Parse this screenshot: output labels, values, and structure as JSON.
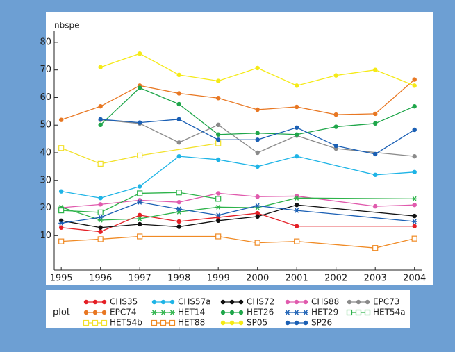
{
  "chart_data": {
    "type": "line",
    "y_label": "nbspe",
    "legend_title": "plot",
    "xlim": [
      1994.82,
      2004.2
    ],
    "xticks": [
      1995,
      1996,
      1997,
      1998,
      1999,
      2000,
      2001,
      2002,
      2003,
      2004
    ],
    "ylim": [
      -2.5,
      84
    ],
    "yticks": [
      10,
      20,
      30,
      40,
      50,
      60,
      70,
      80
    ],
    "series": [
      {
        "name": "CHS35",
        "color": "#e41f26",
        "marker": "circle",
        "x": [
          1995,
          1996,
          1997,
          1998,
          1999,
          2000,
          2001,
          2004
        ],
        "values": [
          12.9,
          11.4,
          17.4,
          15.1,
          16.6,
          18.1,
          13.4,
          13.4
        ]
      },
      {
        "name": "CHS57a",
        "color": "#1eb4e6",
        "marker": "circle",
        "x": [
          1995,
          1996,
          1997,
          1998,
          1999,
          2000,
          2001,
          2003,
          2004
        ],
        "values": [
          26,
          23.6,
          27.8,
          38.7,
          37.5,
          35,
          38.7,
          32,
          33
        ]
      },
      {
        "name": "CHS72",
        "color": "#111111",
        "marker": "circle",
        "x": [
          1995,
          1996,
          1997,
          1998,
          1999,
          2000,
          2001,
          2004
        ],
        "values": [
          15.4,
          12.9,
          14.1,
          13.2,
          15.4,
          16.9,
          21.1,
          17.1
        ]
      },
      {
        "name": "CHS88",
        "color": "#e05aad",
        "marker": "circle",
        "x": [
          1995,
          1996,
          1997,
          1998,
          1999,
          2000,
          2001,
          2003,
          2004
        ],
        "values": [
          20.1,
          21.3,
          22.8,
          22.1,
          25.3,
          24.1,
          24.3,
          20.6,
          21.1
        ]
      },
      {
        "name": "EPC73",
        "color": "#8a8a8a",
        "marker": "circle",
        "x": [
          1996,
          1997,
          1998,
          1999,
          2000,
          2001,
          2002,
          2004
        ],
        "values": [
          51.9,
          50.6,
          43.7,
          50.1,
          40,
          46.2,
          41.5,
          38.7
        ]
      },
      {
        "name": "EPC74",
        "color": "#e87722",
        "marker": "circle",
        "x": [
          1995,
          1996,
          1997,
          1998,
          1999,
          2000,
          2001,
          2002,
          2003,
          2004
        ],
        "values": [
          51.9,
          56.8,
          64.3,
          61.5,
          59.8,
          55.6,
          56.6,
          53.8,
          54.1,
          66.5
        ]
      },
      {
        "name": "HET14",
        "color": "#2db34a",
        "marker": "star",
        "x": [
          1995,
          1996,
          1997,
          1998,
          1999,
          2000,
          2001,
          2004
        ],
        "values": [
          20.3,
          15.6,
          16.1,
          18.6,
          20.3,
          20.1,
          23.6,
          23.3
        ]
      },
      {
        "name": "HET26",
        "color": "#1fa64a",
        "marker": "circle",
        "x": [
          1996,
          1997,
          1998,
          1999,
          2000,
          2001,
          2002,
          2003,
          2004
        ],
        "values": [
          50.1,
          63.5,
          57.6,
          46.6,
          47.1,
          46.6,
          49.4,
          50.6,
          56.8
        ]
      },
      {
        "name": "HET29",
        "color": "#1a5fb4",
        "marker": "star",
        "x": [
          1995,
          1996,
          1997,
          1998,
          1999,
          2000,
          2001,
          2004
        ],
        "values": [
          14.5,
          16.6,
          22.1,
          19.6,
          17.4,
          20.8,
          19.1,
          15.1
        ]
      },
      {
        "name": "HET54a",
        "color": "#2db34a",
        "marker": "square",
        "x": [
          1995,
          1996,
          1997,
          1998,
          1999
        ],
        "values": [
          19.1,
          18.4,
          25.3,
          25.6,
          23.3
        ]
      },
      {
        "name": "HET54b",
        "color": "#f2e12a",
        "marker": "square",
        "x": [
          1995,
          1996,
          1997,
          1999
        ],
        "values": [
          41.7,
          36,
          39,
          43.4
        ]
      },
      {
        "name": "HET88",
        "color": "#f08a24",
        "marker": "square",
        "x": [
          1995,
          1996,
          1997,
          1999,
          2000,
          2001,
          2003,
          2004
        ],
        "values": [
          7.9,
          8.7,
          9.7,
          9.7,
          7.4,
          7.9,
          5.5,
          8.9
        ]
      },
      {
        "name": "SP05",
        "color": "#f5ea16",
        "marker": "circle",
        "x": [
          1996,
          1997,
          1998,
          1999,
          2000,
          2001,
          2002,
          2003,
          2004
        ],
        "values": [
          71,
          75.9,
          68.2,
          66,
          70.7,
          64.3,
          68,
          70,
          64.3
        ]
      },
      {
        "name": "SP26",
        "color": "#1a5fb4",
        "marker": "circle",
        "x": [
          1996,
          1997,
          1998,
          1999,
          2000,
          2001,
          2002,
          2003,
          2004
        ],
        "values": [
          52.1,
          50.9,
          52.1,
          44.7,
          44.7,
          49.1,
          42.5,
          39.5,
          48.3
        ]
      }
    ]
  }
}
